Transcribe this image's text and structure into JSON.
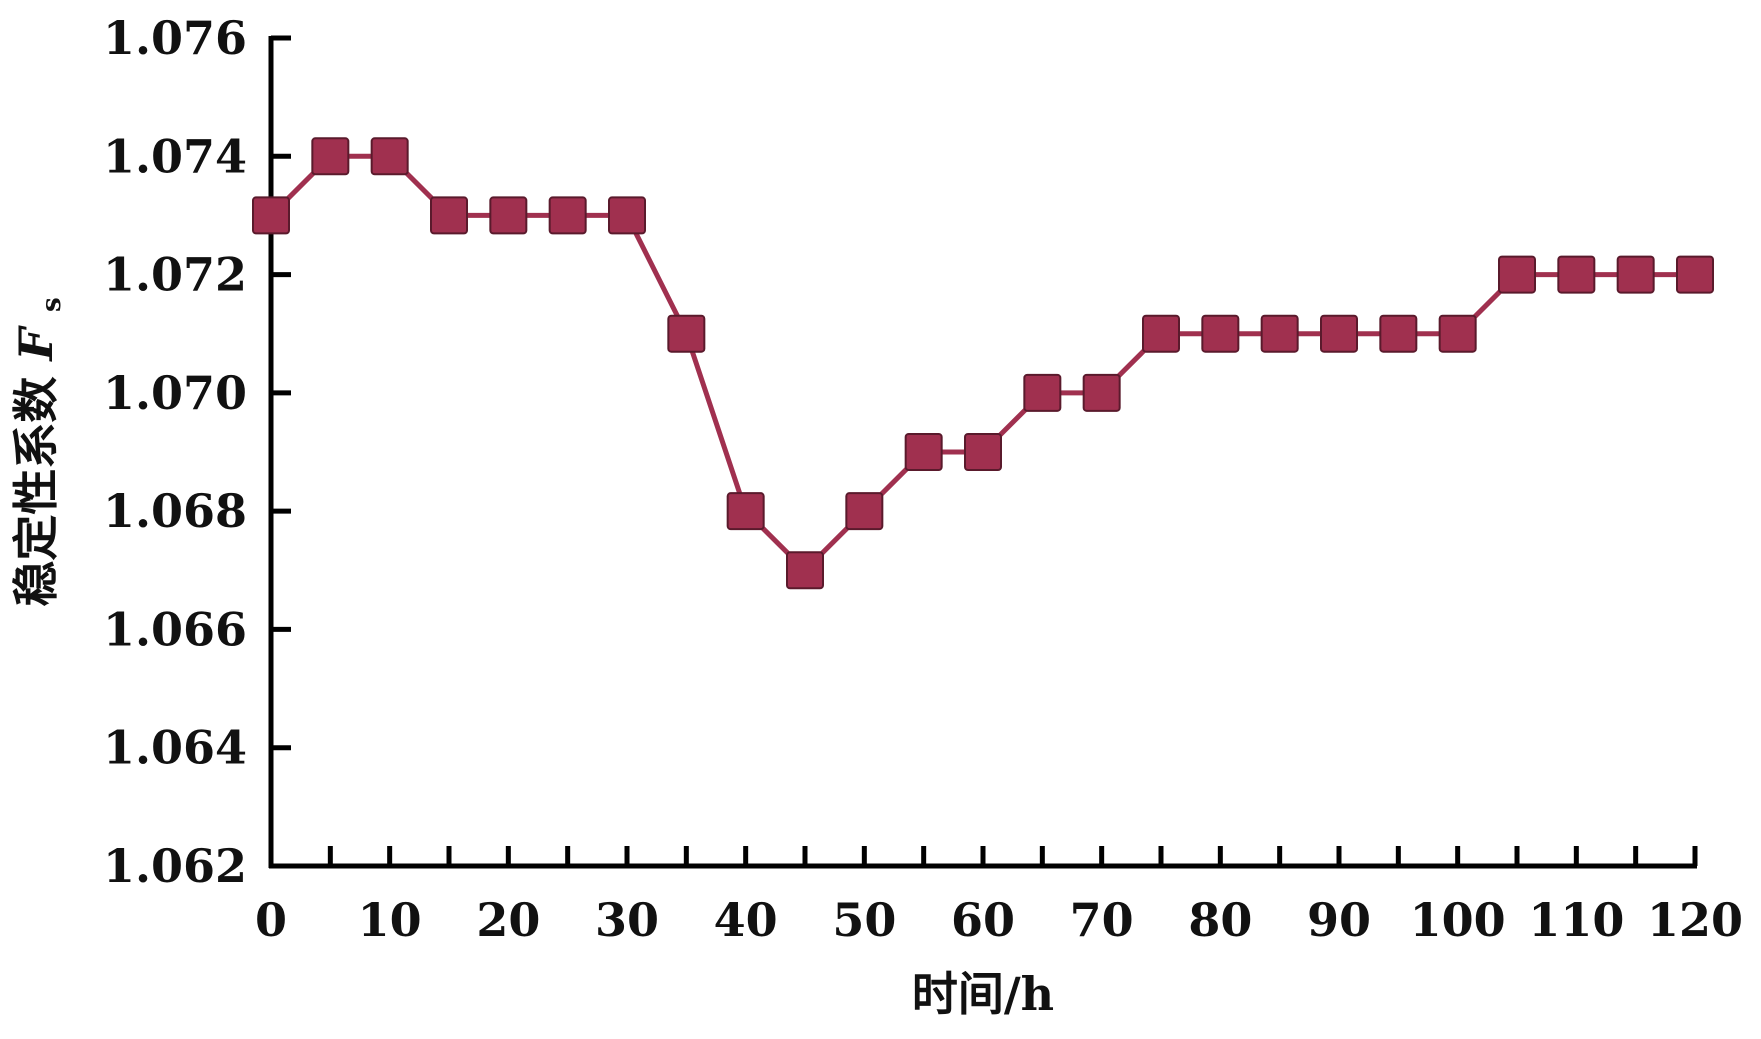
{
  "chart_data": {
    "type": "line",
    "title": "",
    "xlabel": "时间/h",
    "ylabel_main": "稳定性系数",
    "ylabel_symbol": "F",
    "ylabel_subscript": "s",
    "xlim": [
      0,
      120
    ],
    "ylim": [
      1.062,
      1.076
    ],
    "x_major_ticks": [
      0,
      10,
      20,
      30,
      40,
      50,
      60,
      70,
      80,
      90,
      100,
      110,
      120
    ],
    "x_minor_step": 5,
    "y_ticks": [
      "1.062",
      "1.064",
      "1.066",
      "1.068",
      "1.070",
      "1.072",
      "1.074",
      "1.076"
    ],
    "grid": false,
    "legend": "none",
    "series": [
      {
        "color": "#a0304f",
        "marker": "square",
        "x": [
          0,
          5,
          10,
          15,
          20,
          25,
          30,
          35,
          40,
          45,
          50,
          55,
          60,
          65,
          70,
          75,
          80,
          85,
          90,
          95,
          100,
          105,
          110,
          115,
          120
        ],
        "y": [
          1.073,
          1.074,
          1.074,
          1.073,
          1.073,
          1.073,
          1.073,
          1.071,
          1.068,
          1.067,
          1.068,
          1.069,
          1.069,
          1.07,
          1.07,
          1.071,
          1.071,
          1.071,
          1.071,
          1.071,
          1.071,
          1.072,
          1.072,
          1.072,
          1.072
        ]
      }
    ]
  }
}
